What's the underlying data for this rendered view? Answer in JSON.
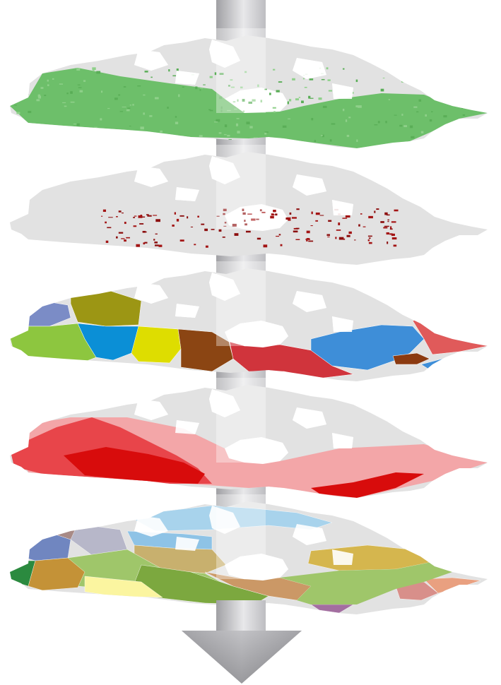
{
  "figure": {
    "description_visible_text": "",
    "arrow": {
      "color_light": "#e6e6e8",
      "color_dark": "#a4a4a8"
    },
    "base_map_color": "#e2e2e2",
    "water_color": "#ffffff",
    "layers": [
      {
        "id": "forest-cover",
        "type": "raster-cover",
        "colors": [
          "#6dbf6a",
          "#8fd08a",
          "#5aae57"
        ]
      },
      {
        "id": "disturbance",
        "type": "speckle",
        "colors": [
          "#8c0e0e",
          "#a31414"
        ]
      },
      {
        "id": "provinces",
        "type": "regions",
        "colors": {
          "yukon": "#7b8cc6",
          "northwest-territories": "#9c9614",
          "british-columbia": "#8dc63f",
          "alberta": "#0b8fd6",
          "saskatchewan": "#dedd00",
          "manitoba": "#8b4513",
          "ontario": "#d0343c",
          "quebec": "#3e8ed8",
          "newfoundland-labrador": "#e05a5a",
          "new-brunswick": "#8b3a10",
          "nova-scotia": "#3e8ed8"
        }
      },
      {
        "id": "intensity-zones",
        "type": "graduated",
        "colors": [
          "#f3a6a8",
          "#e8454a",
          "#d80c0c"
        ]
      },
      {
        "id": "ecozones",
        "type": "regions",
        "colors": [
          "#7086c0",
          "#a88a86",
          "#b7b7c9",
          "#a8d3ec",
          "#8ec3e6",
          "#c8b06e",
          "#d5b64e",
          "#9fc66a",
          "#7ca83f",
          "#cb9866",
          "#d88f8a",
          "#e9a080",
          "#2b8a3f",
          "#c49237",
          "#fbf5a0",
          "#a36ea0"
        ]
      }
    ]
  }
}
